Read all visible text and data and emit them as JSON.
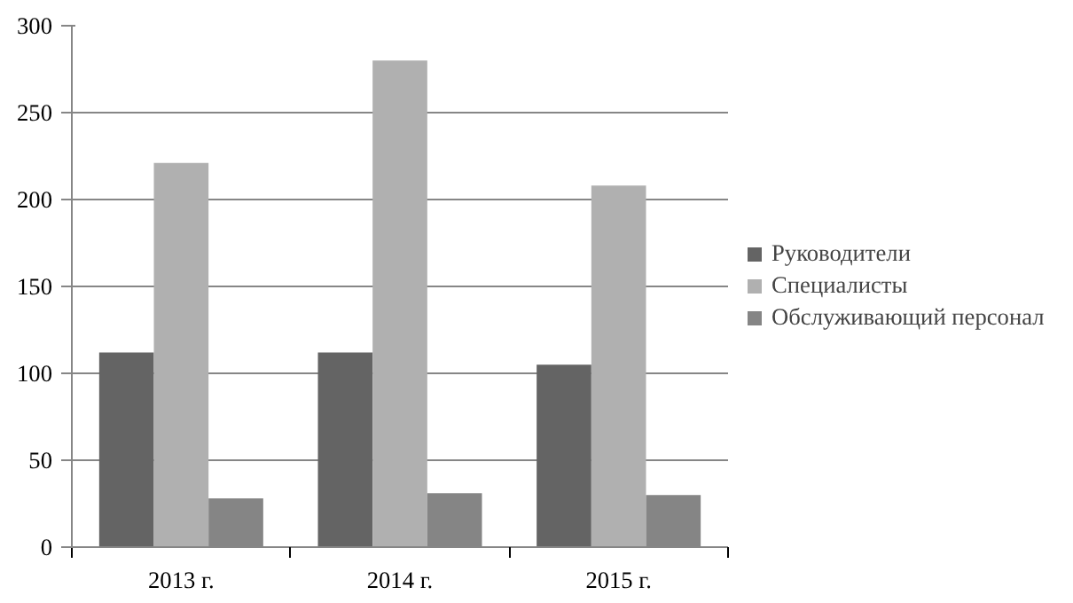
{
  "chart_data": {
    "type": "bar",
    "categories": [
      "2013 г.",
      "2014 г.",
      "2015 г."
    ],
    "series": [
      {
        "name": "Руководители",
        "color": "#646464",
        "values": [
          112,
          112,
          105
        ]
      },
      {
        "name": "Специалисты",
        "color": "#b0b0b0",
        "values": [
          221,
          280,
          208
        ]
      },
      {
        "name": "Обслуживающий персонал",
        "color": "#858585",
        "values": [
          28,
          31,
          30
        ]
      }
    ],
    "ylim": [
      0,
      300
    ],
    "yticks": [
      0,
      50,
      100,
      150,
      200,
      250,
      300
    ],
    "grid": "y",
    "legend": "right"
  }
}
